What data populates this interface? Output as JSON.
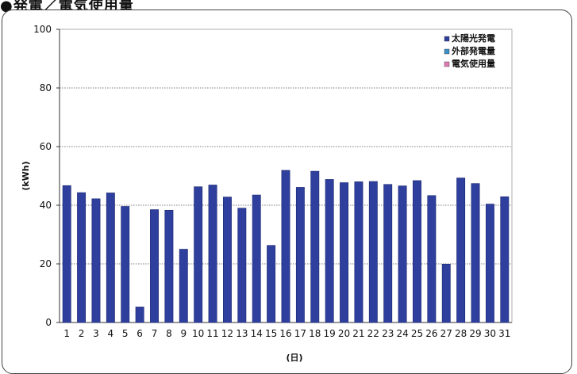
{
  "heading": "●発電／電気使用量",
  "chart_data": {
    "type": "bar",
    "categories": [
      "1",
      "2",
      "3",
      "4",
      "5",
      "6",
      "7",
      "8",
      "9",
      "10",
      "11",
      "12",
      "13",
      "14",
      "15",
      "16",
      "17",
      "18",
      "19",
      "20",
      "21",
      "22",
      "23",
      "24",
      "25",
      "26",
      "27",
      "28",
      "29",
      "30",
      "31"
    ],
    "series": [
      {
        "name": "太陽光発電",
        "color": "#2e3f9e",
        "values": [
          46.7,
          44.3,
          42.2,
          44.2,
          39.6,
          5.3,
          38.5,
          38.3,
          25.0,
          46.3,
          46.9,
          42.8,
          39.0,
          43.5,
          26.3,
          51.9,
          46.1,
          51.6,
          48.8,
          47.7,
          48.0,
          48.1,
          47.1,
          46.6,
          48.4,
          43.3,
          19.9,
          49.3,
          47.4,
          40.4,
          42.9
        ]
      }
    ],
    "legend": [
      {
        "label": "太陽光発電",
        "color": "#2e3f9e"
      },
      {
        "label": "外部発電量",
        "color": "#3d8ec9"
      },
      {
        "label": "電気使用量",
        "color": "#e07ab2"
      }
    ],
    "legend_position": "top-right",
    "ylabel": "(kWh)",
    "xlabel": "(日)",
    "ylim": [
      0,
      100
    ],
    "yticks": [
      0,
      20,
      40,
      60,
      80,
      100
    ],
    "grid": true
  }
}
